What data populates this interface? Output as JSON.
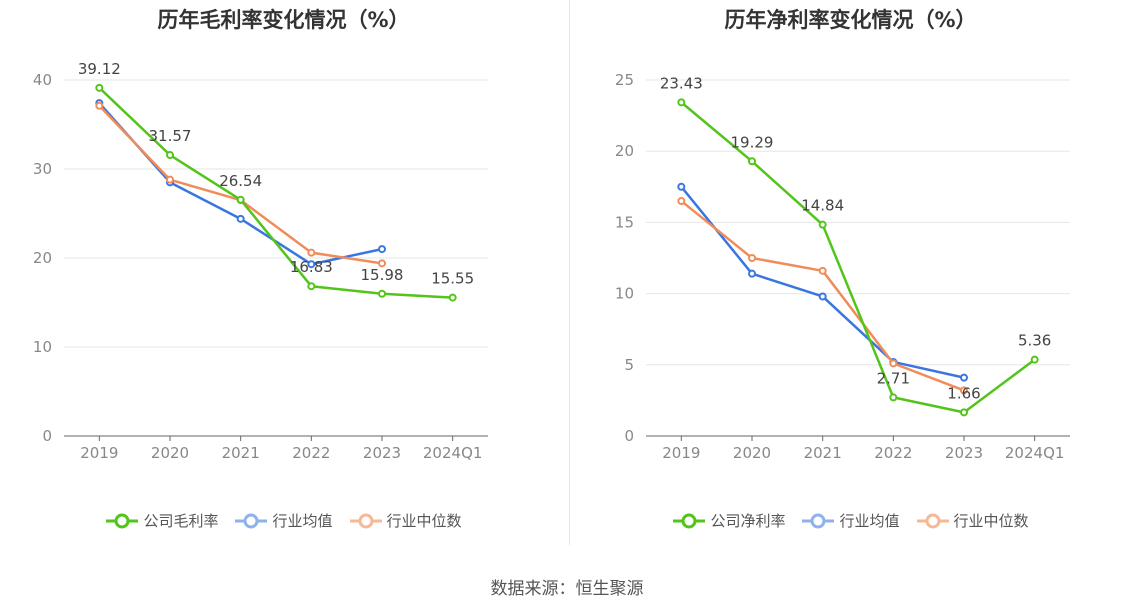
{
  "chart_data": [
    {
      "type": "line",
      "title": "历年毛利率变化情况（%）",
      "categories": [
        "2019",
        "2020",
        "2021",
        "2022",
        "2023",
        "2024Q1"
      ],
      "ylim": [
        0,
        40
      ],
      "yticks": [
        0,
        10,
        20,
        30,
        40
      ],
      "grid": true,
      "legend_position": "bottom",
      "series": [
        {
          "name": "公司毛利率",
          "color": "#52c41a",
          "values": [
            39.12,
            31.57,
            26.54,
            16.83,
            15.98,
            15.55
          ],
          "labels": [
            "39.12",
            "31.57",
            "26.54",
            "16.83",
            "15.98",
            "15.55"
          ]
        },
        {
          "name": "行业均值",
          "color": "#3a76e0",
          "values": [
            37.4,
            28.5,
            24.4,
            19.3,
            21.0,
            null
          ]
        },
        {
          "name": "行业中位数",
          "color": "#f08c5a",
          "values": [
            37.1,
            28.8,
            26.5,
            20.6,
            19.4,
            null
          ]
        }
      ]
    },
    {
      "type": "line",
      "title": "历年净利率变化情况（%）",
      "categories": [
        "2019",
        "2020",
        "2021",
        "2022",
        "2023",
        "2024Q1"
      ],
      "ylim": [
        0,
        25
      ],
      "yticks": [
        0,
        5,
        10,
        15,
        20,
        25
      ],
      "grid": true,
      "legend_position": "bottom",
      "series": [
        {
          "name": "公司净利率",
          "color": "#52c41a",
          "values": [
            23.43,
            19.29,
            14.84,
            2.71,
            1.66,
            5.36
          ],
          "labels": [
            "23.43",
            "19.29",
            "14.84",
            "2.71",
            "1.66",
            "5.36"
          ]
        },
        {
          "name": "行业均值",
          "color": "#3a76e0",
          "values": [
            17.5,
            11.4,
            9.8,
            5.2,
            4.1,
            null
          ]
        },
        {
          "name": "行业中位数",
          "color": "#f08c5a",
          "values": [
            16.5,
            12.5,
            11.6,
            5.1,
            3.2,
            null
          ]
        }
      ]
    }
  ],
  "source_text": "数据来源：恒生聚源"
}
